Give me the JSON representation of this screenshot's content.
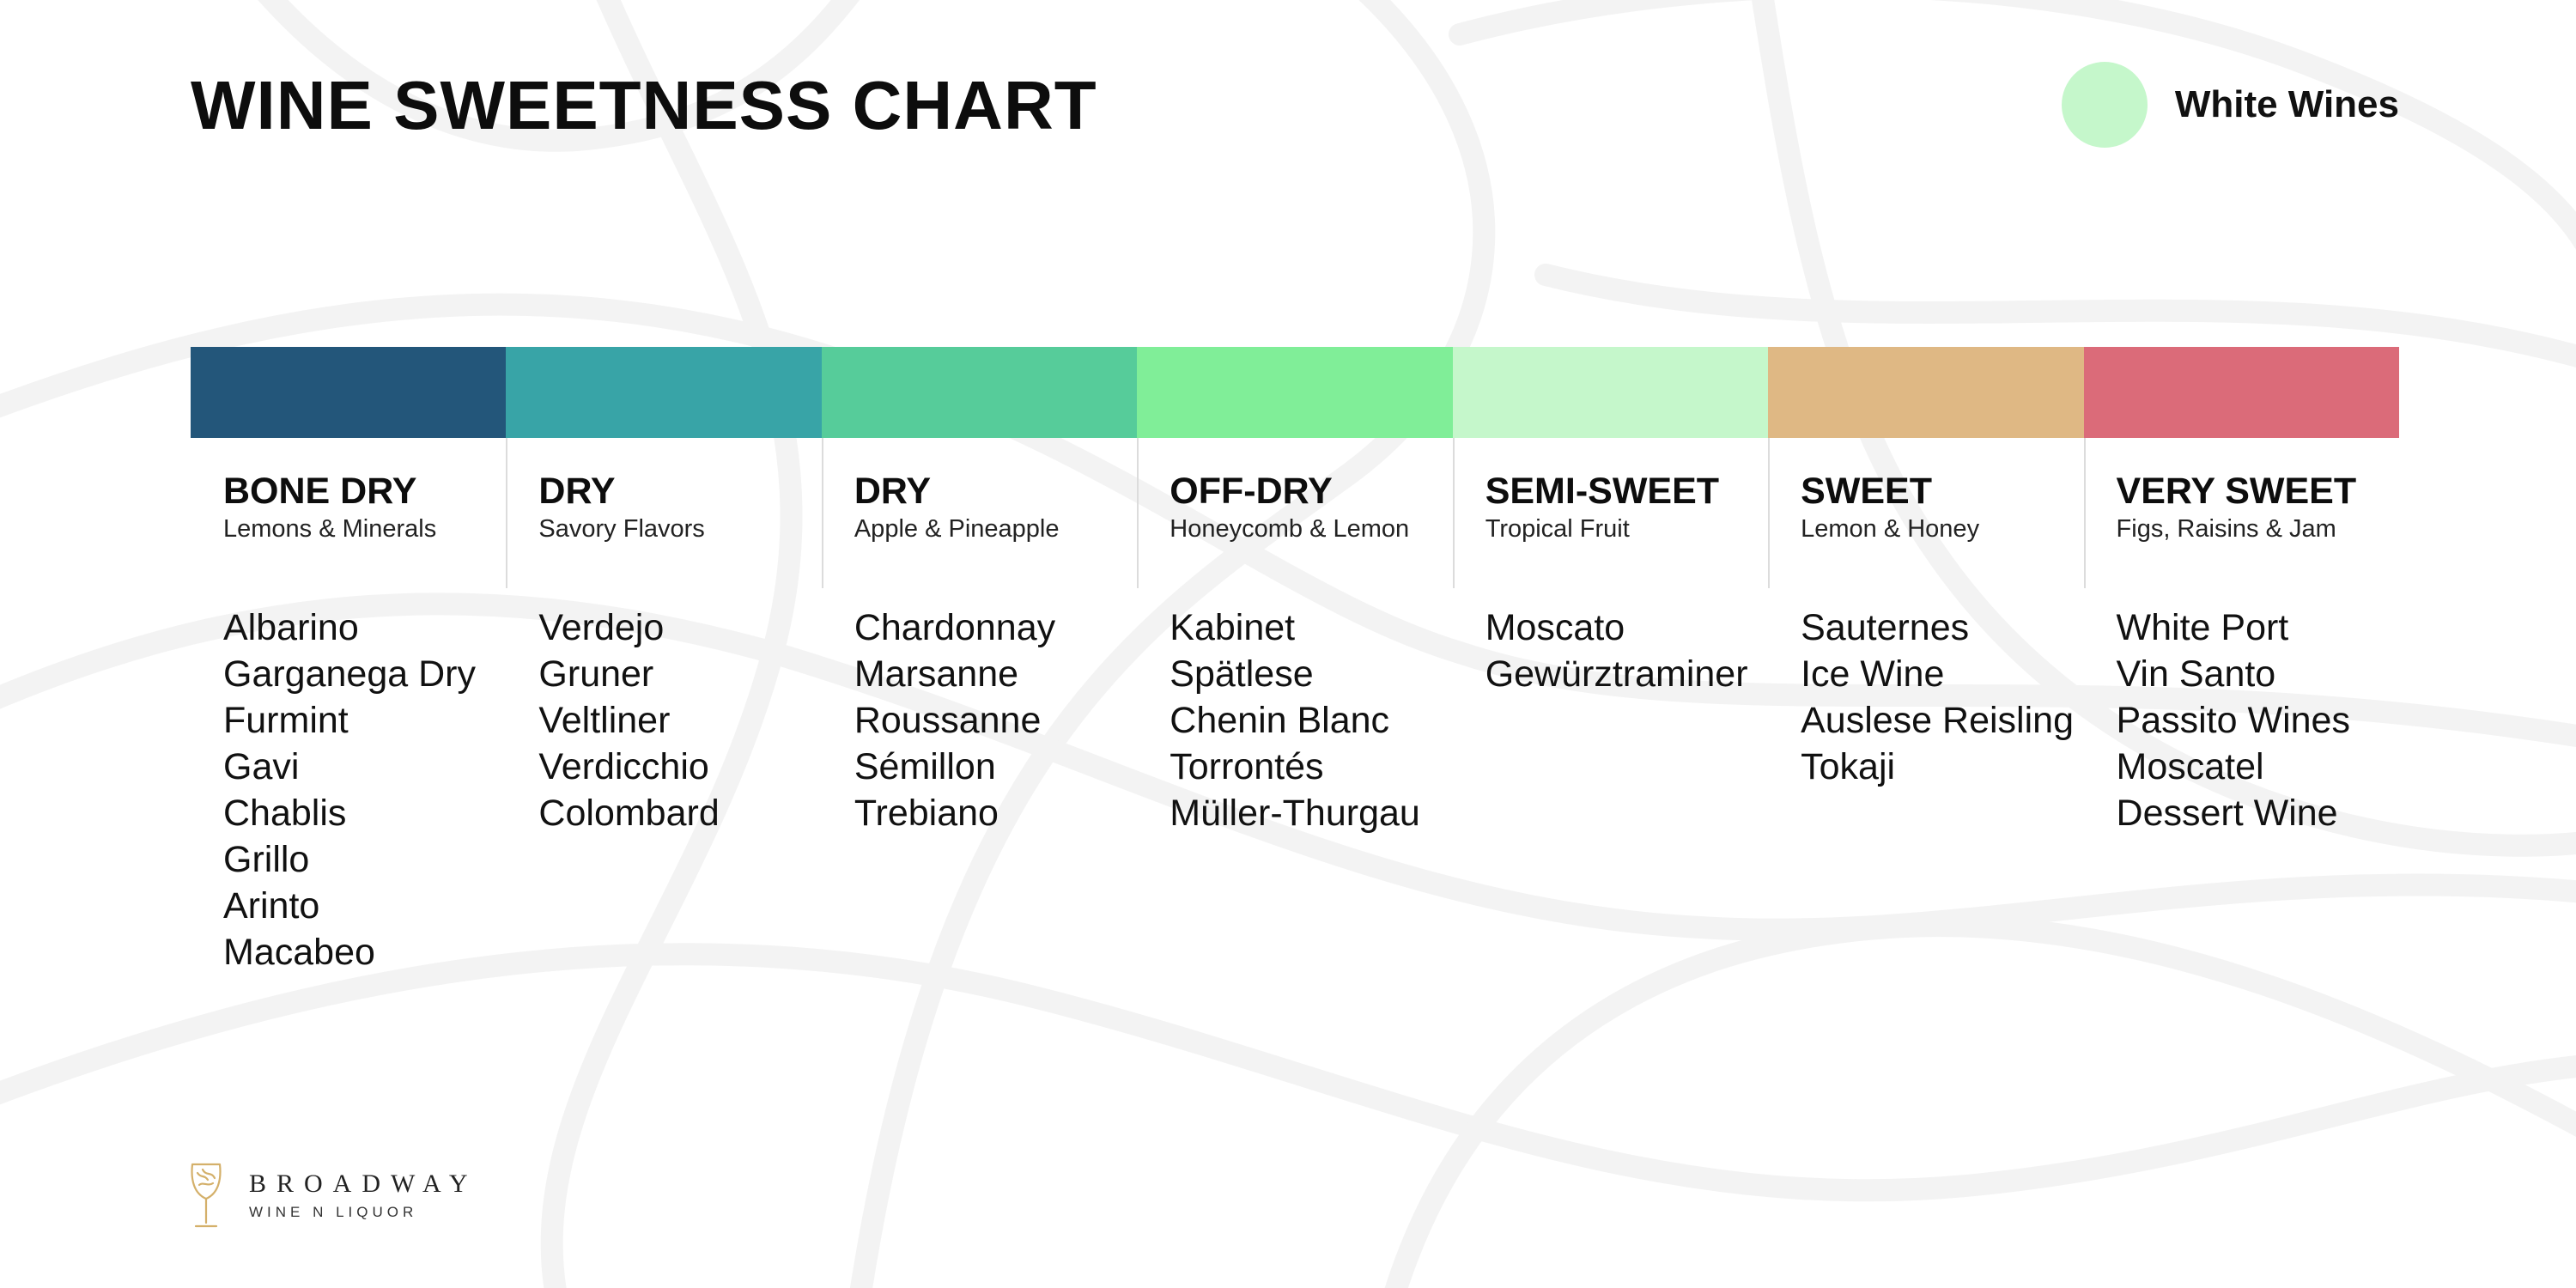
{
  "title": "WINE SWEETNESS CHART",
  "legend": {
    "label": "White Wines",
    "color": "#c5f7cb"
  },
  "colors": [
    "#23567a",
    "#38a4a7",
    "#56cc9a",
    "#80ee98",
    "#c5f7cb",
    "#dfb884",
    "#db6b79"
  ],
  "columns": [
    {
      "level": "BONE DRY",
      "flavor": "Lemons & Minerals",
      "wines": [
        "Albarino",
        "Garganega Dry",
        "Furmint",
        "Gavi",
        "Chablis",
        "Grillo",
        "Arinto",
        "Macabeo"
      ]
    },
    {
      "level": "DRY",
      "flavor": "Savory Flavors",
      "wines": [
        "Verdejo",
        "Gruner",
        "Veltliner",
        "Verdicchio",
        "Colombard"
      ]
    },
    {
      "level": "DRY",
      "flavor": "Apple & Pineapple",
      "wines": [
        "Chardonnay",
        "Marsanne",
        "Roussanne",
        "Sémillon",
        "Trebiano"
      ]
    },
    {
      "level": "OFF-DRY",
      "flavor": "Honeycomb & Lemon",
      "wines": [
        "Kabinet",
        "Spätlese",
        "Chenin Blanc",
        "Torrontés",
        "Müller-Thurgau"
      ]
    },
    {
      "level": "SEMI-SWEET",
      "flavor": "Tropical Fruit",
      "wines": [
        "Moscato",
        "Gewürztraminer"
      ]
    },
    {
      "level": "SWEET",
      "flavor": "Lemon & Honey",
      "wines": [
        "Sauternes",
        "Ice Wine",
        "Auslese Reisling",
        "Tokaji"
      ]
    },
    {
      "level": "VERY SWEET",
      "flavor": "Figs, Raisins & Jam",
      "wines": [
        "White Port",
        "Vin Santo",
        "Passito Wines",
        "Moscatel",
        "Dessert Wine"
      ]
    }
  ],
  "brand": {
    "name": "BROADWAY",
    "subtitle": "WINE N LIQUOR",
    "icon": "wine-glass-icon",
    "accent": "#d4b06a"
  }
}
